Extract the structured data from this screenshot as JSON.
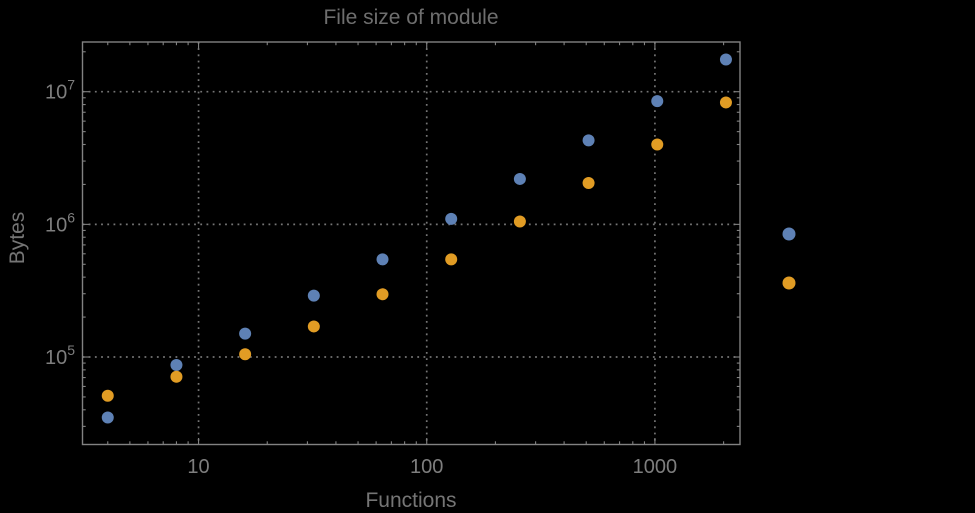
{
  "window": {
    "background_color": "#000000"
  },
  "chart_data": {
    "type": "scatter",
    "title": "File size of module",
    "xlabel": "Functions",
    "ylabel": "Bytes",
    "x_scale": "log10",
    "y_scale": "log10",
    "xlim": [
      3.1,
      2360
    ],
    "ylim": [
      21900,
      23700000
    ],
    "x_major_ticks": [
      10,
      100,
      1000
    ],
    "x_major_tick_labels": [
      "10",
      "100",
      "1000"
    ],
    "y_major_ticks": [
      100000,
      1000000,
      10000000
    ],
    "y_major_tick_labels": [
      "10^5",
      "10^6",
      "10^7"
    ],
    "grid": {
      "style": "dotted",
      "color": "#757575",
      "at_x": [
        10,
        100,
        1000
      ],
      "at_y": [
        100000,
        1000000,
        10000000
      ]
    },
    "x": [
      4,
      8,
      16,
      32,
      64,
      128,
      256,
      512,
      1024,
      2048
    ],
    "series": [
      {
        "name": "series-1-blue",
        "color": "#5E81B5",
        "values": [
          35000,
          87000,
          150000,
          290000,
          545000,
          1100000,
          2200000,
          4300000,
          8500000,
          17500000
        ]
      },
      {
        "name": "series-2-orange",
        "color": "#E19C24",
        "values": [
          51000,
          71000,
          105000,
          170000,
          297000,
          545000,
          1050000,
          2050000,
          4000000,
          8300000
        ]
      }
    ],
    "legend": {
      "position": "outside-right",
      "entries": [
        {
          "marker_color": "#5E81B5",
          "label": ""
        },
        {
          "marker_color": "#E19C24",
          "label": ""
        }
      ],
      "note": "two marker dots visible right of plot frame; label text not visible on dark background"
    },
    "marker": {
      "shape": "circle",
      "radius_px": 6
    },
    "frame_color": "#828282",
    "tick_text_color": "#7e7e7e",
    "title_color": "#6e6e6e",
    "axis_label_color": "#757575"
  }
}
